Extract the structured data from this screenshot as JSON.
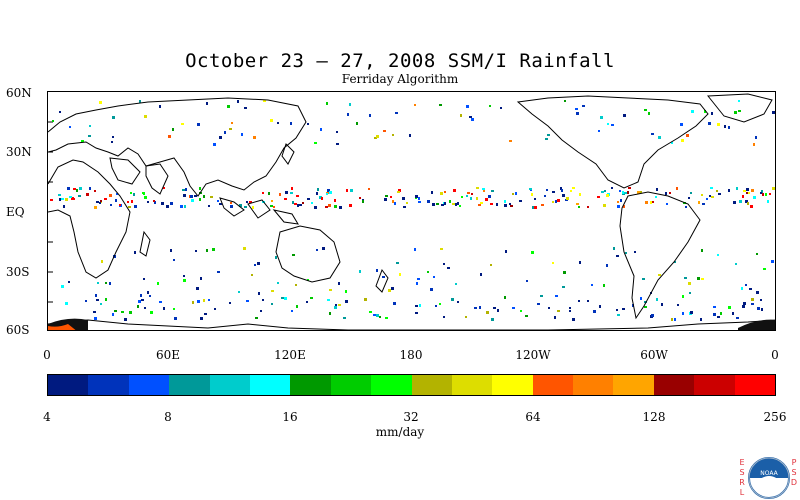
{
  "title": "October 23 – 27, 2008 SSM/I Rainfall",
  "subtitle": "Ferriday Algorithm",
  "map": {
    "lat_labels": [
      "60N",
      "30N",
      "EQ",
      "30S",
      "60S"
    ],
    "lon_labels": [
      "0",
      "60E",
      "120E",
      "180",
      "120W",
      "60W",
      "0"
    ],
    "land_color": "#ffffff",
    "coast_color": "#000000"
  },
  "colorbar": {
    "colors": [
      "#001a80",
      "#0033bb",
      "#0050ff",
      "#009999",
      "#00cccc",
      "#00ffff",
      "#009900",
      "#00cc00",
      "#00ff00",
      "#b3b300",
      "#dddd00",
      "#ffff00",
      "#ff5500",
      "#ff8000",
      "#ffa500",
      "#990000",
      "#cc0000",
      "#ff0000"
    ],
    "tick_labels": [
      "4",
      "8",
      "16",
      "32",
      "64",
      "128",
      "256"
    ],
    "units": "mm/day"
  },
  "logo": {
    "left_letters": "ESRL",
    "right_letters": "PSD",
    "emblem": "NOAA",
    "icon": "noaa-logo-icon"
  }
}
